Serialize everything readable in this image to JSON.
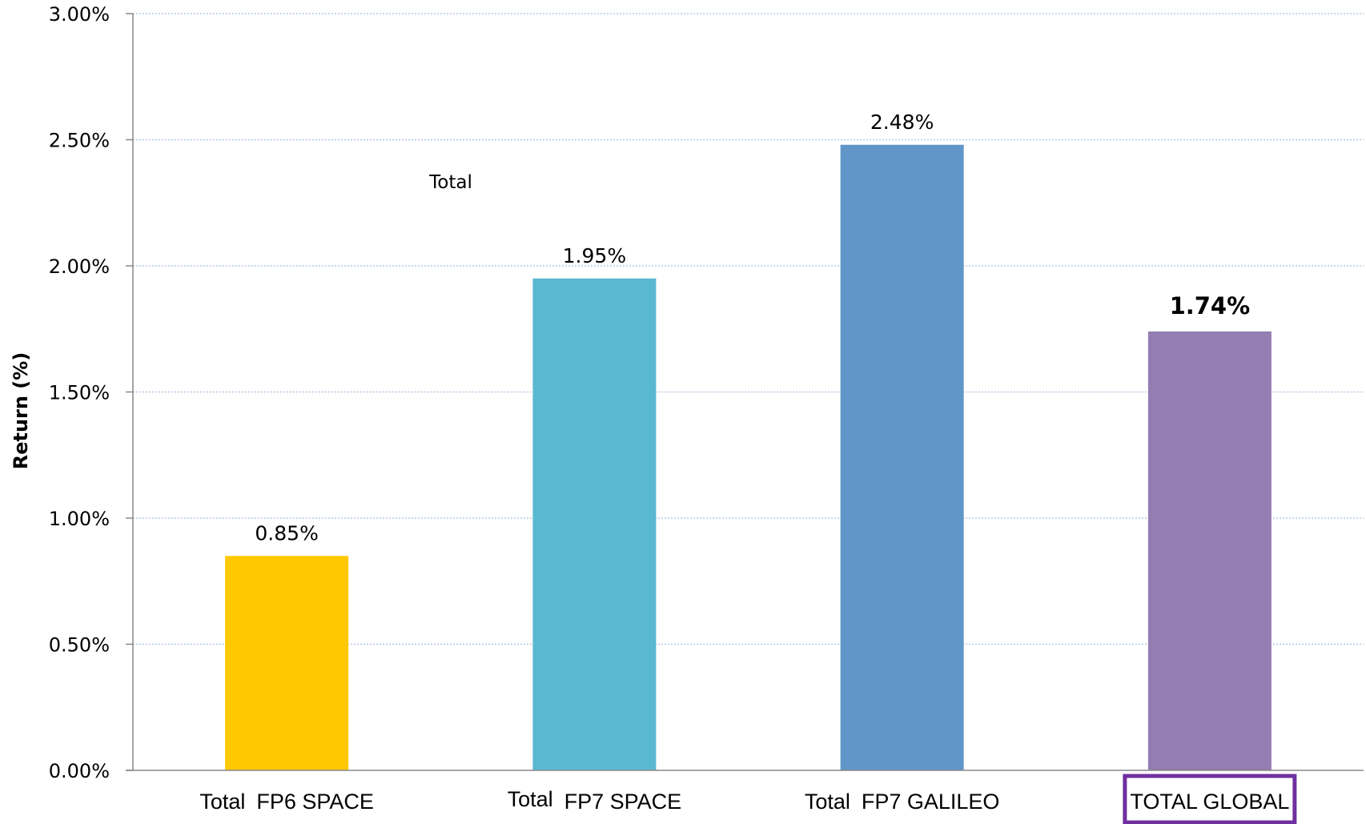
{
  "chart_data": {
    "type": "bar",
    "ylabel": "Return (%)",
    "ylim": [
      0,
      3.0
    ],
    "yticks": [
      0,
      0.5,
      1.0,
      1.5,
      2.0,
      2.5,
      3.0
    ],
    "ytick_labels": [
      "0.00%",
      "0.50%",
      "1.00%",
      "1.50%",
      "2.00%",
      "2.50%",
      "3.00%"
    ],
    "grid": true,
    "categories": [
      {
        "prefix": "Total",
        "name": "FP6 SPACE"
      },
      {
        "prefix": "Total",
        "name": "FP7 SPACE"
      },
      {
        "prefix": "Total",
        "name": "FP7 GALILEO"
      },
      {
        "prefix": "",
        "name": "TOTAL GLOBAL"
      }
    ],
    "values": [
      0.85,
      1.95,
      2.48,
      1.74
    ],
    "value_labels": [
      "0.85%",
      "1.95%",
      "2.48%",
      "1.74%"
    ],
    "colors": [
      "#ffc800",
      "#5bb8d1",
      "#6096c8",
      "#937db1"
    ],
    "highlight_color": "#7030a0",
    "highlight_index": 3,
    "annotation": "Total"
  }
}
